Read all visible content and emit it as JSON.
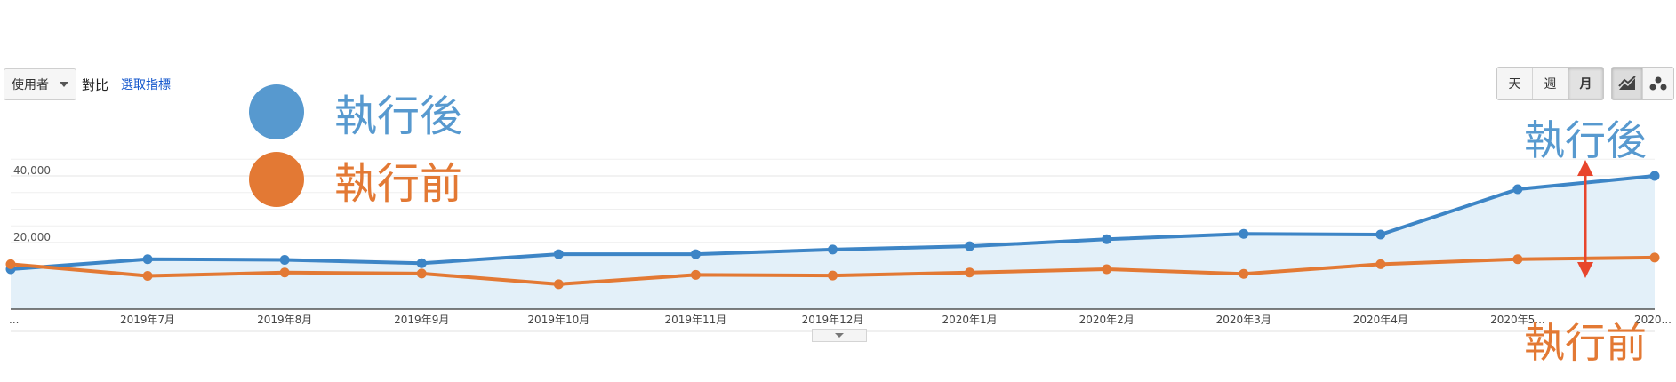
{
  "toolbar": {
    "metric_select": "使用者",
    "compare_label": "對比",
    "choose_metric": "選取指標"
  },
  "period_buttons": [
    {
      "label": "天",
      "active": false
    },
    {
      "label": "週",
      "active": false
    },
    {
      "label": "月",
      "active": true
    }
  ],
  "view_buttons": [
    {
      "icon": "line-chart-icon",
      "active": true
    },
    {
      "icon": "motion-chart-icon",
      "active": false
    }
  ],
  "legend": [
    {
      "label": "執行後",
      "color": "#5799cf"
    },
    {
      "label": "執行前",
      "color": "#e37934"
    }
  ],
  "annotations": {
    "after_label": "執行後",
    "before_label": "執行前",
    "arrow_color": "#e8452c"
  },
  "chart_data": {
    "type": "line",
    "categories": [
      "...",
      "2019年7月",
      "2019年8月",
      "2019年9月",
      "2019年10月",
      "2019年11月",
      "2019年12月",
      "2020年1月",
      "2020年2月",
      "2020年3月",
      "2020年4月",
      "2020年5...",
      "2020..."
    ],
    "series": [
      {
        "name": "執行後",
        "color": "#3d85c6",
        "values": [
          12000,
          15000,
          14800,
          13800,
          16500,
          16500,
          17900,
          18900,
          21000,
          22600,
          22400,
          36000,
          40000
        ]
      },
      {
        "name": "執行前",
        "color": "#e37934",
        "values": [
          13500,
          10000,
          11000,
          10700,
          7500,
          10300,
          10100,
          11000,
          12000,
          10600,
          13500,
          15000,
          15500
        ]
      }
    ],
    "ylim": [
      0,
      45000
    ],
    "yticks": [
      {
        "value": 20000,
        "label": "20,000"
      },
      {
        "value": 40000,
        "label": "40,000"
      }
    ],
    "area_fill": "#e3f0f9",
    "grid": true
  }
}
